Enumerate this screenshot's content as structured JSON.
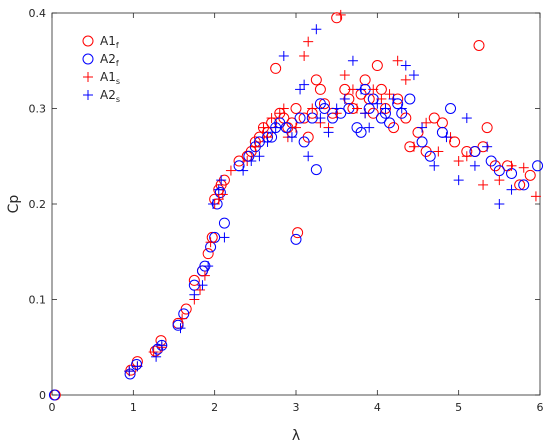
{
  "chart_data": {
    "type": "scatter",
    "xlabel": "λ",
    "ylabel": "Cp",
    "xlim": [
      0,
      6
    ],
    "ylim": [
      0,
      0.4
    ],
    "xticks": [
      "0",
      "1",
      "2",
      "3",
      "4",
      "5",
      "6"
    ],
    "yticks": [
      "0",
      "0.1",
      "0.2",
      "0.3",
      "0.4"
    ],
    "grid": false,
    "legend_position": "top-left",
    "series": [
      {
        "name": "A1",
        "subscript": "f",
        "marker": "circle",
        "color": "#ff0000",
        "points": [
          [
            0.04,
            0.0
          ],
          [
            0.97,
            0.026
          ],
          [
            1.05,
            0.035
          ],
          [
            1.27,
            0.046
          ],
          [
            1.34,
            0.057
          ],
          [
            1.55,
            0.075
          ],
          [
            1.65,
            0.09
          ],
          [
            1.75,
            0.12
          ],
          [
            1.85,
            0.13
          ],
          [
            1.92,
            0.148
          ],
          [
            1.97,
            0.165
          ],
          [
            2.0,
            0.205
          ],
          [
            2.05,
            0.215
          ],
          [
            2.08,
            0.22
          ],
          [
            2.12,
            0.225
          ],
          [
            2.3,
            0.245
          ],
          [
            2.4,
            0.25
          ],
          [
            2.45,
            0.255
          ],
          [
            2.5,
            0.265
          ],
          [
            2.55,
            0.27
          ],
          [
            2.6,
            0.28
          ],
          [
            2.65,
            0.275
          ],
          [
            2.7,
            0.285
          ],
          [
            2.75,
            0.342
          ],
          [
            2.8,
            0.295
          ],
          [
            2.85,
            0.29
          ],
          [
            2.9,
            0.28
          ],
          [
            2.95,
            0.285
          ],
          [
            3.0,
            0.3
          ],
          [
            3.02,
            0.17
          ],
          [
            3.1,
            0.29
          ],
          [
            3.15,
            0.27
          ],
          [
            3.2,
            0.295
          ],
          [
            3.25,
            0.33
          ],
          [
            3.3,
            0.32
          ],
          [
            3.35,
            0.305
          ],
          [
            3.45,
            0.295
          ],
          [
            3.5,
            0.395
          ],
          [
            3.6,
            0.32
          ],
          [
            3.65,
            0.31
          ],
          [
            3.7,
            0.3
          ],
          [
            3.8,
            0.315
          ],
          [
            3.85,
            0.33
          ],
          [
            3.9,
            0.31
          ],
          [
            3.95,
            0.295
          ],
          [
            4.0,
            0.345
          ],
          [
            4.05,
            0.32
          ],
          [
            4.1,
            0.3
          ],
          [
            4.2,
            0.28
          ],
          [
            4.25,
            0.31
          ],
          [
            4.35,
            0.29
          ],
          [
            4.4,
            0.26
          ],
          [
            4.5,
            0.275
          ],
          [
            4.6,
            0.255
          ],
          [
            4.7,
            0.29
          ],
          [
            4.8,
            0.285
          ],
          [
            4.95,
            0.265
          ],
          [
            5.1,
            0.255
          ],
          [
            5.2,
            0.255
          ],
          [
            5.25,
            0.366
          ],
          [
            5.3,
            0.26
          ],
          [
            5.35,
            0.28
          ],
          [
            5.45,
            0.24
          ],
          [
            5.6,
            0.24
          ],
          [
            5.75,
            0.22
          ],
          [
            5.88,
            0.23
          ]
        ]
      },
      {
        "name": "A2",
        "subscript": "f",
        "marker": "circle",
        "color": "#0000ff",
        "points": [
          [
            0.03,
            0.0
          ],
          [
            0.96,
            0.022
          ],
          [
            1.04,
            0.032
          ],
          [
            1.3,
            0.048
          ],
          [
            1.35,
            0.052
          ],
          [
            1.55,
            0.073
          ],
          [
            1.62,
            0.085
          ],
          [
            1.75,
            0.115
          ],
          [
            1.85,
            0.13
          ],
          [
            1.88,
            0.135
          ],
          [
            1.95,
            0.155
          ],
          [
            2.0,
            0.165
          ],
          [
            2.03,
            0.2
          ],
          [
            2.07,
            0.212
          ],
          [
            2.12,
            0.18
          ],
          [
            2.3,
            0.24
          ],
          [
            2.42,
            0.25
          ],
          [
            2.5,
            0.26
          ],
          [
            2.55,
            0.265
          ],
          [
            2.65,
            0.27
          ],
          [
            2.7,
            0.27
          ],
          [
            2.75,
            0.28
          ],
          [
            2.8,
            0.285
          ],
          [
            2.88,
            0.28
          ],
          [
            2.95,
            0.275
          ],
          [
            3.0,
            0.163
          ],
          [
            3.05,
            0.29
          ],
          [
            3.1,
            0.265
          ],
          [
            3.2,
            0.29
          ],
          [
            3.25,
            0.236
          ],
          [
            3.3,
            0.305
          ],
          [
            3.35,
            0.3
          ],
          [
            3.45,
            0.29
          ],
          [
            3.55,
            0.295
          ],
          [
            3.65,
            0.3
          ],
          [
            3.75,
            0.28
          ],
          [
            3.8,
            0.275
          ],
          [
            3.85,
            0.32
          ],
          [
            3.9,
            0.3
          ],
          [
            3.95,
            0.31
          ],
          [
            4.05,
            0.29
          ],
          [
            4.1,
            0.295
          ],
          [
            4.15,
            0.285
          ],
          [
            4.25,
            0.305
          ],
          [
            4.3,
            0.295
          ],
          [
            4.4,
            0.31
          ],
          [
            4.55,
            0.265
          ],
          [
            4.65,
            0.25
          ],
          [
            4.8,
            0.275
          ],
          [
            4.9,
            0.3
          ],
          [
            5.2,
            0.255
          ],
          [
            5.4,
            0.245
          ],
          [
            5.5,
            0.235
          ],
          [
            5.65,
            0.232
          ],
          [
            5.8,
            0.22
          ],
          [
            5.97,
            0.24
          ]
        ]
      },
      {
        "name": "A1",
        "subscript": "s",
        "marker": "plus",
        "color": "#ff0000",
        "points": [
          [
            0.95,
            0.025
          ],
          [
            1.05,
            0.03
          ],
          [
            1.25,
            0.045
          ],
          [
            1.35,
            0.05
          ],
          [
            1.6,
            0.08
          ],
          [
            1.75,
            0.1
          ],
          [
            1.82,
            0.11
          ],
          [
            1.88,
            0.125
          ],
          [
            1.95,
            0.16
          ],
          [
            2.0,
            0.2
          ],
          [
            2.05,
            0.205
          ],
          [
            2.1,
            0.21
          ],
          [
            2.2,
            0.235
          ],
          [
            2.4,
            0.245
          ],
          [
            2.5,
            0.26
          ],
          [
            2.6,
            0.28
          ],
          [
            2.65,
            0.27
          ],
          [
            2.7,
            0.29
          ],
          [
            2.8,
            0.295
          ],
          [
            2.85,
            0.3
          ],
          [
            2.9,
            0.27
          ],
          [
            3.0,
            0.28
          ],
          [
            3.1,
            0.355
          ],
          [
            3.15,
            0.37
          ],
          [
            3.2,
            0.3
          ],
          [
            3.3,
            0.285
          ],
          [
            3.4,
            0.28
          ],
          [
            3.5,
            0.295
          ],
          [
            3.55,
            0.398
          ],
          [
            3.6,
            0.335
          ],
          [
            3.7,
            0.32
          ],
          [
            3.75,
            0.3
          ],
          [
            3.85,
            0.295
          ],
          [
            3.95,
            0.32
          ],
          [
            4.05,
            0.31
          ],
          [
            4.15,
            0.315
          ],
          [
            4.25,
            0.35
          ],
          [
            4.35,
            0.33
          ],
          [
            4.45,
            0.26
          ],
          [
            4.6,
            0.285
          ],
          [
            4.75,
            0.255
          ],
          [
            4.9,
            0.27
          ],
          [
            5.0,
            0.245
          ],
          [
            5.1,
            0.25
          ],
          [
            5.3,
            0.22
          ],
          [
            5.5,
            0.225
          ],
          [
            5.65,
            0.24
          ],
          [
            5.8,
            0.238
          ],
          [
            5.95,
            0.208
          ]
        ]
      },
      {
        "name": "A2",
        "subscript": "s",
        "marker": "plus",
        "color": "#0000ff",
        "points": [
          [
            0.95,
            0.025
          ],
          [
            1.05,
            0.03
          ],
          [
            1.28,
            0.04
          ],
          [
            1.35,
            0.052
          ],
          [
            1.58,
            0.07
          ],
          [
            1.75,
            0.105
          ],
          [
            1.85,
            0.115
          ],
          [
            1.92,
            0.135
          ],
          [
            1.98,
            0.2
          ],
          [
            2.05,
            0.215
          ],
          [
            2.08,
            0.225
          ],
          [
            2.12,
            0.165
          ],
          [
            2.35,
            0.235
          ],
          [
            2.45,
            0.245
          ],
          [
            2.55,
            0.25
          ],
          [
            2.65,
            0.265
          ],
          [
            2.75,
            0.28
          ],
          [
            2.85,
            0.355
          ],
          [
            2.95,
            0.27
          ],
          [
            3.05,
            0.32
          ],
          [
            3.1,
            0.325
          ],
          [
            3.15,
            0.25
          ],
          [
            3.25,
            0.383
          ],
          [
            3.3,
            0.29
          ],
          [
            3.4,
            0.275
          ],
          [
            3.5,
            0.3
          ],
          [
            3.6,
            0.31
          ],
          [
            3.7,
            0.35
          ],
          [
            3.8,
            0.32
          ],
          [
            3.85,
            0.295
          ],
          [
            3.9,
            0.28
          ],
          [
            4.0,
            0.305
          ],
          [
            4.1,
            0.3
          ],
          [
            4.2,
            0.31
          ],
          [
            4.3,
            0.3
          ],
          [
            4.35,
            0.345
          ],
          [
            4.45,
            0.335
          ],
          [
            4.55,
            0.28
          ],
          [
            4.7,
            0.24
          ],
          [
            4.85,
            0.27
          ],
          [
            5.0,
            0.225
          ],
          [
            5.1,
            0.29
          ],
          [
            5.2,
            0.24
          ],
          [
            5.35,
            0.26
          ],
          [
            5.5,
            0.2
          ],
          [
            5.65,
            0.215
          ]
        ]
      }
    ]
  }
}
